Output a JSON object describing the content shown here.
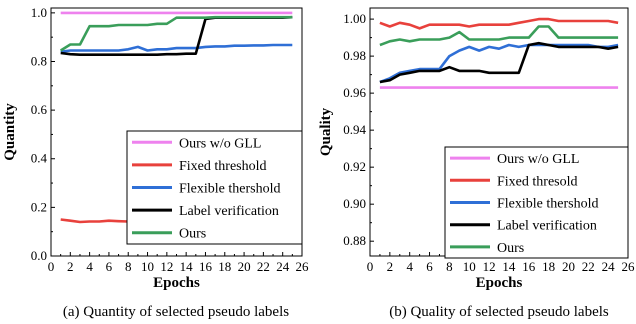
{
  "chart_data": [
    {
      "type": "line",
      "caption": "(a) Quantity of selected pseudo labels",
      "xlabel": "Epochs",
      "ylabel": "Quantity",
      "xlim": [
        0,
        26
      ],
      "ylim": [
        0.0,
        1.02
      ],
      "x_ticks": [
        "0",
        "2",
        "4",
        "6",
        "8",
        "10",
        "12",
        "14",
        "16",
        "18",
        "20",
        "22",
        "24",
        "26"
      ],
      "y_ticks": [
        "0.0",
        "0.2",
        "0.4",
        "0.6",
        "0.8",
        "1.0"
      ],
      "grid": false,
      "legend_position": "lower-right",
      "x": [
        1,
        2,
        3,
        4,
        5,
        6,
        7,
        8,
        9,
        10,
        11,
        12,
        13,
        14,
        15,
        16,
        17,
        18,
        19,
        20,
        21,
        22,
        23,
        24,
        25
      ],
      "series": [
        {
          "name": "Ours w/o GLL",
          "color": "#ee82ee",
          "values": [
            1.0,
            1.0,
            1.0,
            1.0,
            1.0,
            1.0,
            1.0,
            1.0,
            1.0,
            1.0,
            1.0,
            1.0,
            1.0,
            1.0,
            1.0,
            1.0,
            1.0,
            1.0,
            1.0,
            1.0,
            1.0,
            1.0,
            1.0,
            1.0,
            1.0
          ]
        },
        {
          "name": "Fixed threshold",
          "color": "#e8413c",
          "values": [
            0.15,
            0.145,
            0.14,
            0.142,
            0.142,
            0.145,
            0.143,
            0.142,
            0.142,
            0.141,
            0.14,
            0.14,
            0.137,
            0.15,
            0.142,
            0.136,
            0.137,
            0.138,
            0.14,
            0.141,
            0.142,
            0.142,
            0.144,
            0.144,
            0.145
          ]
        },
        {
          "name": "Flexible thershold",
          "color": "#2f6fd6",
          "values": [
            0.84,
            0.845,
            0.845,
            0.845,
            0.845,
            0.845,
            0.845,
            0.85,
            0.86,
            0.845,
            0.85,
            0.85,
            0.855,
            0.855,
            0.855,
            0.86,
            0.862,
            0.862,
            0.865,
            0.865,
            0.866,
            0.866,
            0.868,
            0.868,
            0.868
          ]
        },
        {
          "name": "Label verification",
          "color": "#000000",
          "values": [
            0.835,
            0.83,
            0.828,
            0.828,
            0.828,
            0.828,
            0.828,
            0.828,
            0.828,
            0.828,
            0.828,
            0.83,
            0.83,
            0.832,
            0.832,
            0.975,
            0.98,
            0.98,
            0.98,
            0.98,
            0.98,
            0.98,
            0.98,
            0.98,
            0.982
          ]
        },
        {
          "name": "Ours",
          "color": "#3a9e5a",
          "values": [
            0.845,
            0.87,
            0.87,
            0.945,
            0.945,
            0.945,
            0.95,
            0.95,
            0.95,
            0.95,
            0.955,
            0.955,
            0.98,
            0.98,
            0.98,
            0.98,
            0.982,
            0.982,
            0.982,
            0.982,
            0.982,
            0.982,
            0.982,
            0.982,
            0.982
          ]
        }
      ]
    },
    {
      "type": "line",
      "caption": "(b) Quality of selected pseudo labels",
      "xlabel": "Epochs",
      "ylabel": "Quality",
      "xlim": [
        0,
        26
      ],
      "ylim": [
        0.872,
        1.006
      ],
      "x_ticks": [
        "0",
        "2",
        "4",
        "6",
        "8",
        "10",
        "12",
        "14",
        "16",
        "18",
        "20",
        "22",
        "24",
        "26"
      ],
      "y_ticks": [
        "0.88",
        "0.90",
        "0.92",
        "0.94",
        "0.96",
        "0.98",
        "1.00"
      ],
      "grid": false,
      "legend_position": "lower-right",
      "x": [
        1,
        2,
        3,
        4,
        5,
        6,
        7,
        8,
        9,
        10,
        11,
        12,
        13,
        14,
        15,
        16,
        17,
        18,
        19,
        20,
        21,
        22,
        23,
        24,
        25
      ],
      "series": [
        {
          "name": "Ours w/o GLL",
          "color": "#ee82ee",
          "values": [
            0.963,
            0.963,
            0.963,
            0.963,
            0.963,
            0.963,
            0.963,
            0.963,
            0.963,
            0.963,
            0.963,
            0.963,
            0.963,
            0.963,
            0.963,
            0.963,
            0.963,
            0.963,
            0.963,
            0.963,
            0.963,
            0.963,
            0.963,
            0.963,
            0.963
          ]
        },
        {
          "name": "Fixed thresold",
          "color": "#e8413c",
          "values": [
            0.998,
            0.996,
            0.998,
            0.997,
            0.995,
            0.997,
            0.997,
            0.997,
            0.997,
            0.996,
            0.997,
            0.997,
            0.997,
            0.997,
            0.998,
            0.999,
            1.0,
            1.0,
            0.999,
            0.999,
            0.999,
            0.999,
            0.999,
            0.999,
            0.998
          ]
        },
        {
          "name": "Flexible thershold",
          "color": "#2f6fd6",
          "values": [
            0.966,
            0.968,
            0.971,
            0.972,
            0.973,
            0.973,
            0.973,
            0.98,
            0.983,
            0.985,
            0.983,
            0.985,
            0.984,
            0.986,
            0.985,
            0.986,
            0.986,
            0.986,
            0.986,
            0.986,
            0.986,
            0.986,
            0.985,
            0.985,
            0.986
          ]
        },
        {
          "name": "Label verification",
          "color": "#000000",
          "values": [
            0.966,
            0.967,
            0.97,
            0.971,
            0.972,
            0.972,
            0.972,
            0.974,
            0.972,
            0.972,
            0.972,
            0.971,
            0.971,
            0.971,
            0.971,
            0.986,
            0.987,
            0.986,
            0.985,
            0.985,
            0.985,
            0.985,
            0.985,
            0.984,
            0.985
          ]
        },
        {
          "name": "Ours",
          "color": "#3a9e5a",
          "values": [
            0.986,
            0.988,
            0.989,
            0.988,
            0.989,
            0.989,
            0.989,
            0.99,
            0.993,
            0.989,
            0.989,
            0.989,
            0.989,
            0.99,
            0.99,
            0.99,
            0.996,
            0.996,
            0.99,
            0.99,
            0.99,
            0.99,
            0.99,
            0.99,
            0.99
          ]
        }
      ]
    }
  ]
}
